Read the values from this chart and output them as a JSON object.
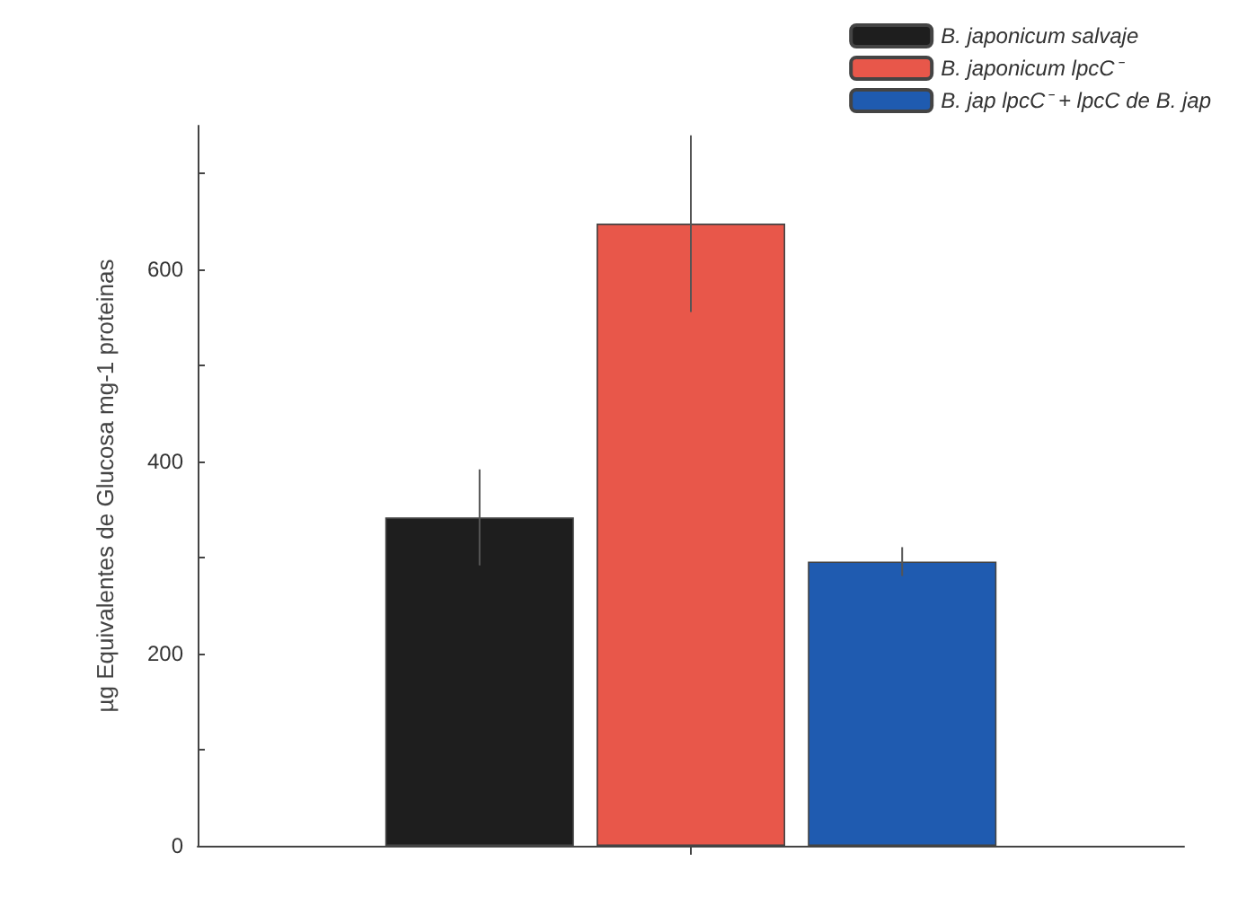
{
  "chart_data": {
    "type": "bar",
    "ylabel": "µg Equivalentes de Glucosa mg-1 proteinas",
    "categories": [
      null
    ],
    "series": [
      {
        "name": "B. japonicum salvaje",
        "color": "#1e1e1e",
        "values": [
          342
        ],
        "errors": [
          50
        ]
      },
      {
        "name": "B. japonicum lpcC⁻",
        "color": "#e8574a",
        "values": [
          648
        ],
        "errors": [
          92
        ]
      },
      {
        "name": "B. jap lpcC⁻ + lpcC de B. jap",
        "color": "#1f5bb0",
        "values": [
          296
        ],
        "errors": [
          15
        ]
      }
    ],
    "ylim": [
      0,
      750
    ],
    "yticks": [
      0,
      {
        "value": 100,
        "label": null
      },
      200,
      {
        "value": 300,
        "label": null
      },
      400,
      {
        "value": 500,
        "label": null
      },
      600,
      {
        "value": 700,
        "label": null
      }
    ],
    "grid": false,
    "legend": "top right"
  }
}
